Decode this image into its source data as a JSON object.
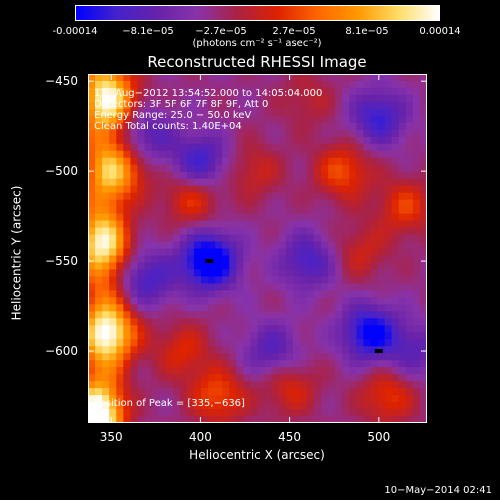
{
  "colorbar": {
    "ticks": [
      "-0.00014",
      "−8.1e−05",
      "−2.7e−05",
      "2.7e−05",
      "8.1e−05",
      "0.00014"
    ],
    "unit": "(photons cm⁻² s⁻¹ asec⁻²)"
  },
  "annotations": {
    "time": "11−Aug−2012 13:54:52.000 to 14:05:04.000",
    "detectors": "Detectors: 3F 5F 6F 7F 8F 9F, Att 0",
    "energy": "Energy Range: 25.0 − 50.0 keV",
    "clean": "Clean    Total counts: 1.40E+04",
    "peak": "Position of Peak = [335,−636]"
  },
  "footer": "10−May−2014 02:41",
  "chart_data": {
    "type": "heatmap",
    "title": "Reconstructed RHESSI Image",
    "xlabel": "Heliocentric X (arcsec)",
    "ylabel": "Heliocentric Y (arcsec)",
    "xlim": [
      337,
      527
    ],
    "ylim": [
      -640,
      -446
    ],
    "xticks": [
      350,
      400,
      450,
      500
    ],
    "xtick_labels": [
      "350",
      "400",
      "450",
      "500"
    ],
    "yticks": [
      -450,
      -500,
      -550,
      -600
    ],
    "ytick_labels": [
      "−450",
      "−500",
      "−550",
      "−600"
    ],
    "colorbar_range": [
      -0.00014,
      0.00014
    ],
    "colormap": [
      "#0000ff",
      "#4422cc",
      "#6622aa",
      "#8833aa",
      "#aa2244",
      "#dd2200",
      "#ff6600",
      "#ff9900",
      "#ffdd66",
      "#ffffff"
    ],
    "peak": [
      335,
      -636
    ],
    "features": [
      {
        "x": 350,
        "y": -590,
        "value": 0.00012
      },
      {
        "x": 345,
        "y": -540,
        "value": 0.0001
      },
      {
        "x": 355,
        "y": -500,
        "value": 9e-05
      },
      {
        "x": 350,
        "y": -460,
        "value": 0.00011
      },
      {
        "x": 340,
        "y": -635,
        "value": 0.00014
      },
      {
        "x": 395,
        "y": -515,
        "value": 6e-05
      },
      {
        "x": 390,
        "y": -600,
        "value": 5e-05
      },
      {
        "x": 410,
        "y": -625,
        "value": 7e-05
      },
      {
        "x": 430,
        "y": -500,
        "value": 4e-05
      },
      {
        "x": 480,
        "y": -500,
        "value": 7e-05
      },
      {
        "x": 490,
        "y": -545,
        "value": 4e-05
      },
      {
        "x": 515,
        "y": -520,
        "value": 6e-05
      },
      {
        "x": 450,
        "y": -620,
        "value": 5e-05
      },
      {
        "x": 505,
        "y": -625,
        "value": 6e-05
      },
      {
        "x": 460,
        "y": -460,
        "value": 3e-05
      },
      {
        "x": 405,
        "y": -550,
        "value": -0.00014
      },
      {
        "x": 400,
        "y": -495,
        "value": -8e-05
      },
      {
        "x": 370,
        "y": -480,
        "value": -6e-05
      },
      {
        "x": 370,
        "y": -560,
        "value": -7e-05
      },
      {
        "x": 460,
        "y": -550,
        "value": -7e-05
      },
      {
        "x": 495,
        "y": -590,
        "value": -0.00011
      },
      {
        "x": 500,
        "y": -470,
        "value": -8e-05
      },
      {
        "x": 440,
        "y": -600,
        "value": -6e-05
      },
      {
        "x": 520,
        "y": -600,
        "value": -5e-05
      }
    ]
  }
}
